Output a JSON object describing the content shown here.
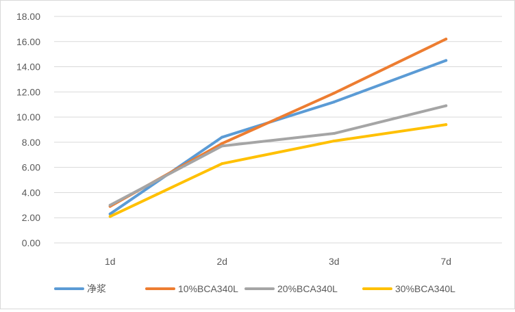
{
  "chart_data": {
    "type": "line",
    "title": "",
    "xlabel": "",
    "ylabel": "",
    "categories": [
      "1d",
      "2d",
      "3d",
      "7d"
    ],
    "ylim": [
      0,
      18
    ],
    "ytick_step": 2,
    "ytick_labels": [
      "0.00",
      "2.00",
      "4.00",
      "6.00",
      "8.00",
      "10.00",
      "12.00",
      "14.00",
      "16.00",
      "18.00"
    ],
    "grid": "horizontal",
    "legend_position": "bottom",
    "series": [
      {
        "name": "净浆",
        "color": "#5B9BD5",
        "values": [
          2.3,
          8.4,
          11.2,
          14.5
        ]
      },
      {
        "name": "10%BCA340L",
        "color": "#ED7D31",
        "values": [
          2.9,
          7.9,
          11.9,
          16.2
        ]
      },
      {
        "name": "20%BCA340L",
        "color": "#A5A5A5",
        "values": [
          3.0,
          7.7,
          8.7,
          10.9
        ]
      },
      {
        "name": "30%BCA340L",
        "color": "#FFC000",
        "values": [
          2.1,
          6.3,
          8.1,
          9.4
        ]
      }
    ]
  }
}
